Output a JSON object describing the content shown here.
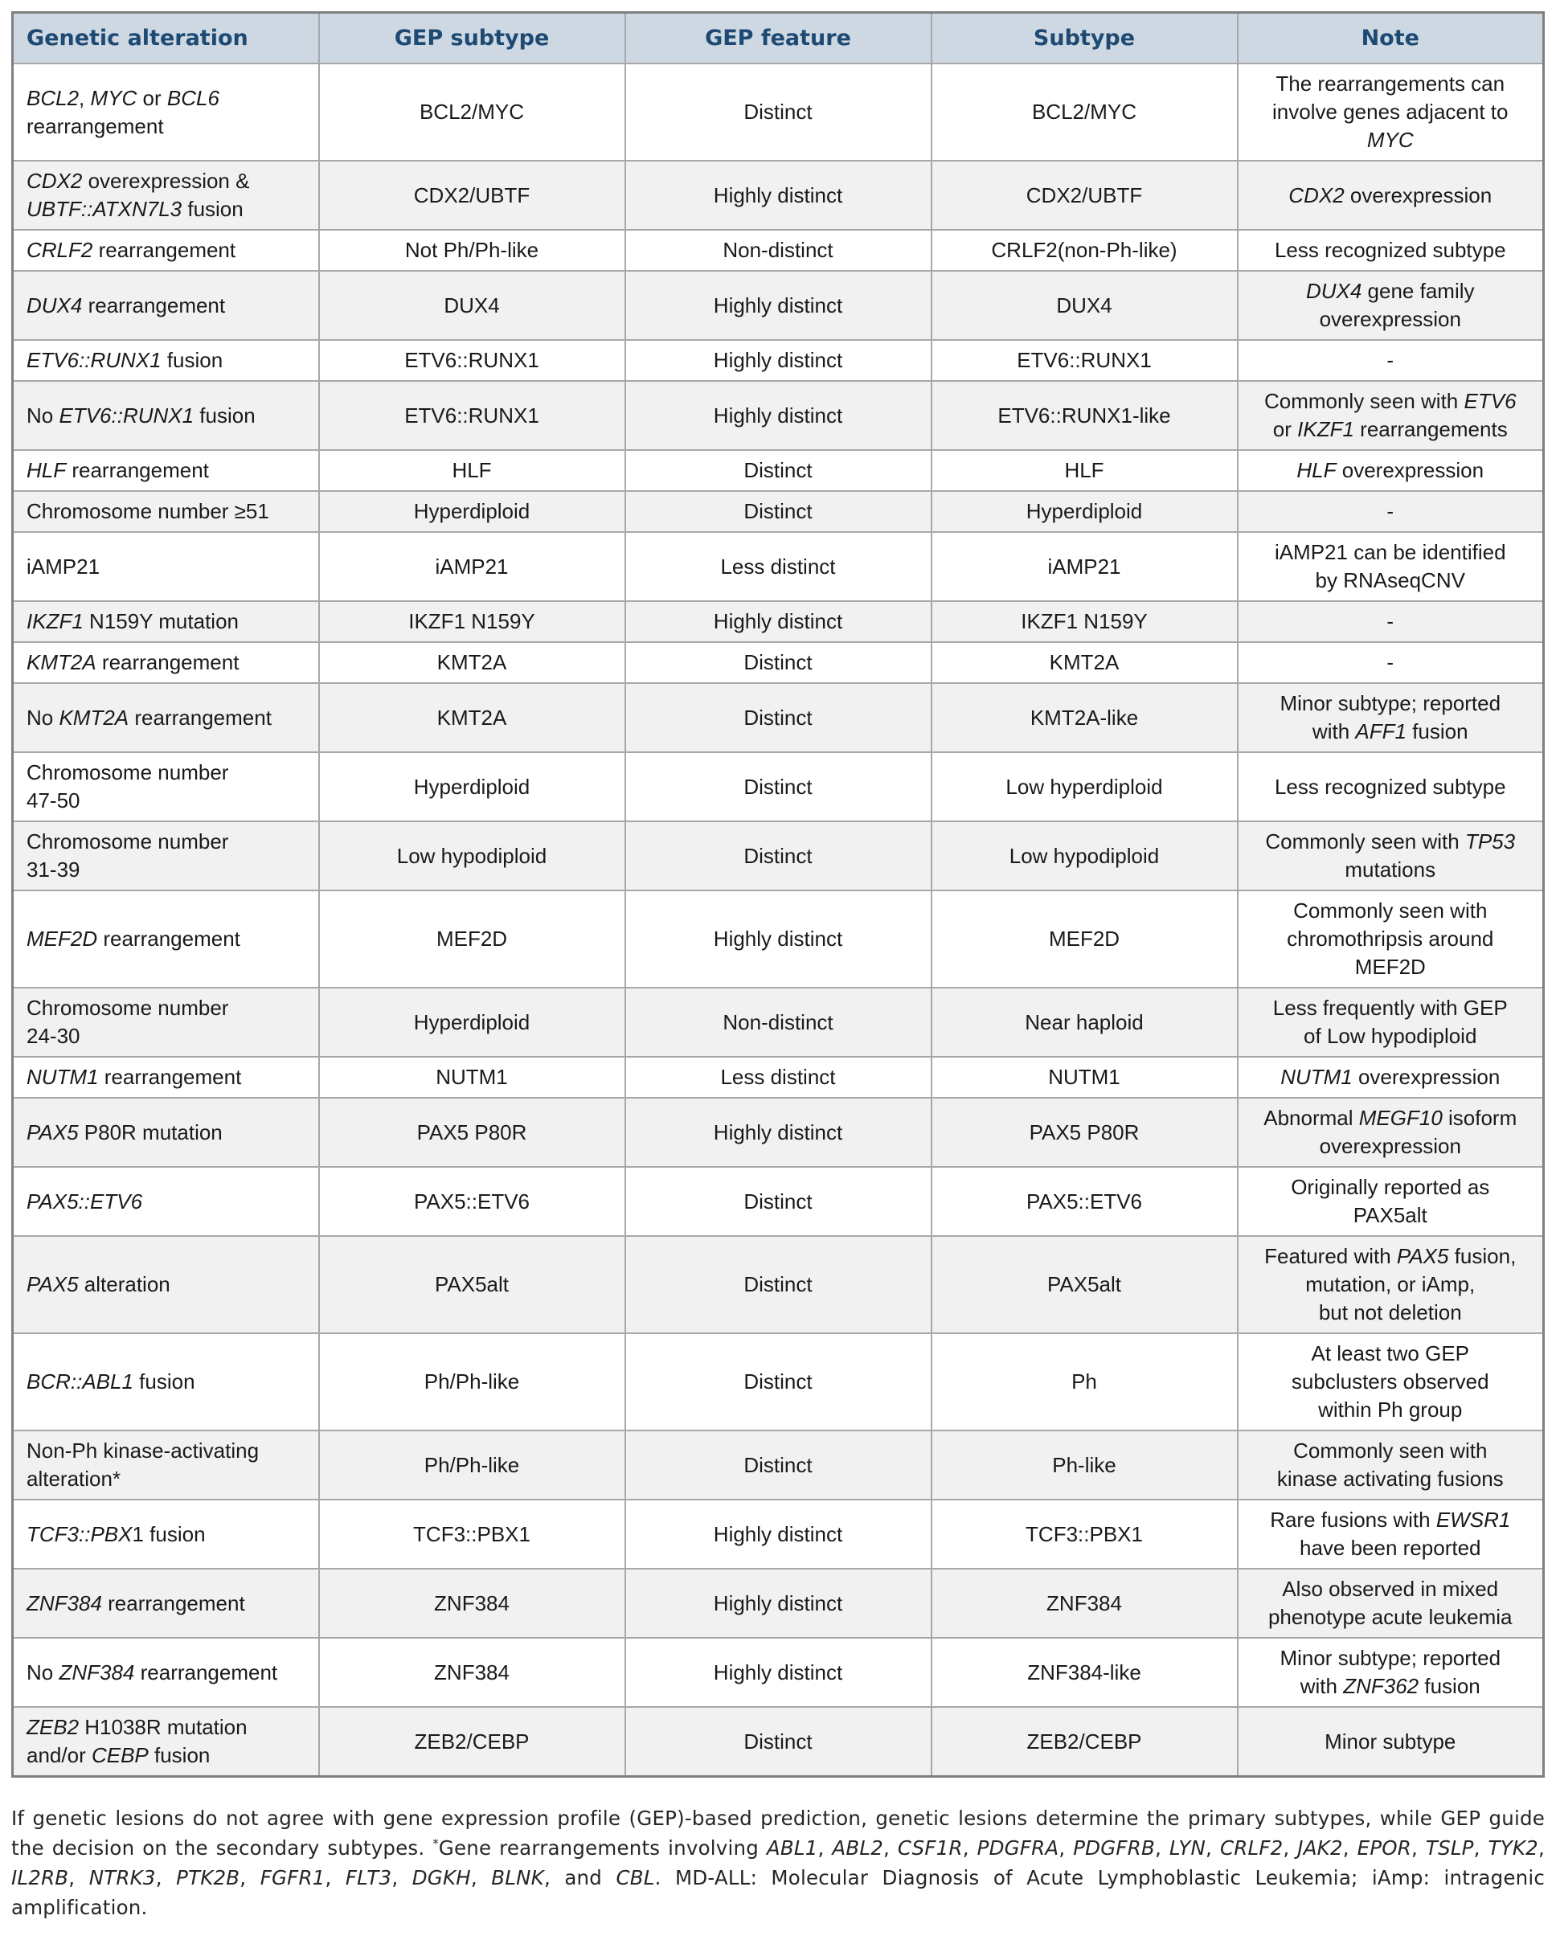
{
  "colors": {
    "header_bg": "#cdd8e2",
    "header_text": "#1d4973",
    "row_alt_bg": "#f1f1f1",
    "border": "#a8a8a8",
    "outer_border": "#7f7f7f"
  },
  "table": {
    "headers": [
      "Genetic alteration",
      "GEP subtype",
      "GEP feature",
      "Subtype",
      "Note"
    ],
    "rows": [
      {
        "genetic_alteration": [
          {
            "t": "BCL2",
            "i": true
          },
          {
            "t": ", "
          },
          {
            "t": "MYC",
            "i": true
          },
          {
            "t": " or "
          },
          {
            "t": "BCL6",
            "i": true
          },
          {
            "t": "\nrearrangement"
          }
        ],
        "gep_subtype": "BCL2/MYC",
        "gep_feature": "Distinct",
        "subtype": "BCL2/MYC",
        "note": [
          {
            "t": "The rearrangements can\ninvolve genes adjacent to\n"
          },
          {
            "t": "MYC",
            "i": true
          }
        ]
      },
      {
        "genetic_alteration": [
          {
            "t": "CDX2",
            "i": true
          },
          {
            "t": " overexpression &\n"
          },
          {
            "t": "UBTF::ATXN7L3",
            "i": true
          },
          {
            "t": " fusion"
          }
        ],
        "gep_subtype": "CDX2/UBTF",
        "gep_feature": "Highly distinct",
        "subtype": "CDX2/UBTF",
        "note": [
          {
            "t": "CDX2",
            "i": true
          },
          {
            "t": " overexpression"
          }
        ]
      },
      {
        "genetic_alteration": [
          {
            "t": "CRLF2",
            "i": true
          },
          {
            "t": " rearrangement"
          }
        ],
        "gep_subtype": "Not Ph/Ph-like",
        "gep_feature": "Non-distinct",
        "subtype": "CRLF2(non-Ph-like)",
        "note": "Less recognized subtype"
      },
      {
        "genetic_alteration": [
          {
            "t": "DUX4",
            "i": true
          },
          {
            "t": " rearrangement"
          }
        ],
        "gep_subtype": "DUX4",
        "gep_feature": "Highly distinct",
        "subtype": "DUX4",
        "note": [
          {
            "t": "DUX4",
            "i": true
          },
          {
            "t": " gene family\noverexpression"
          }
        ]
      },
      {
        "genetic_alteration": [
          {
            "t": "ETV6::RUNX1",
            "i": true
          },
          {
            "t": " fusion"
          }
        ],
        "gep_subtype": "ETV6::RUNX1",
        "gep_feature": "Highly distinct",
        "subtype": "ETV6::RUNX1",
        "note": "-"
      },
      {
        "genetic_alteration": [
          {
            "t": "No "
          },
          {
            "t": "ETV6::RUNX1",
            "i": true
          },
          {
            "t": " fusion"
          }
        ],
        "gep_subtype": "ETV6::RUNX1",
        "gep_feature": "Highly distinct",
        "subtype": "ETV6::RUNX1-like",
        "note": [
          {
            "t": "Commonly seen with "
          },
          {
            "t": "ETV6",
            "i": true
          },
          {
            "t": "\nor "
          },
          {
            "t": "IKZF1",
            "i": true
          },
          {
            "t": " rearrangements"
          }
        ]
      },
      {
        "genetic_alteration": [
          {
            "t": "HLF",
            "i": true
          },
          {
            "t": " rearrangement"
          }
        ],
        "gep_subtype": "HLF",
        "gep_feature": "Distinct",
        "subtype": "HLF",
        "note": [
          {
            "t": "HLF",
            "i": true
          },
          {
            "t": " overexpression"
          }
        ]
      },
      {
        "genetic_alteration": "Chromosome number ≥51",
        "gep_subtype": "Hyperdiploid",
        "gep_feature": "Distinct",
        "subtype": "Hyperdiploid",
        "note": "-"
      },
      {
        "genetic_alteration": "iAMP21",
        "gep_subtype": "iAMP21",
        "gep_feature": "Less distinct",
        "subtype": "iAMP21",
        "note": "iAMP21 can be identified\nby RNAseqCNV"
      },
      {
        "genetic_alteration": [
          {
            "t": "IKZF1",
            "i": true
          },
          {
            "t": " N159Y mutation"
          }
        ],
        "gep_subtype": "IKZF1 N159Y",
        "gep_feature": "Highly distinct",
        "subtype": "IKZF1 N159Y",
        "note": "-"
      },
      {
        "genetic_alteration": [
          {
            "t": "KMT2A",
            "i": true
          },
          {
            "t": " rearrangement"
          }
        ],
        "gep_subtype": "KMT2A",
        "gep_feature": "Distinct",
        "subtype": "KMT2A",
        "note": "-"
      },
      {
        "genetic_alteration": [
          {
            "t": "No "
          },
          {
            "t": "KMT2A",
            "i": true
          },
          {
            "t": " rearrangement"
          }
        ],
        "gep_subtype": "KMT2A",
        "gep_feature": "Distinct",
        "subtype": "KMT2A-like",
        "note": [
          {
            "t": "Minor subtype; reported\nwith "
          },
          {
            "t": "AFF1",
            "i": true
          },
          {
            "t": " fusion"
          }
        ]
      },
      {
        "genetic_alteration": "Chromosome number\n47-50",
        "gep_subtype": "Hyperdiploid",
        "gep_feature": "Distinct",
        "subtype": "Low hyperdiploid",
        "note": "Less recognized subtype"
      },
      {
        "genetic_alteration": "Chromosome number\n31-39",
        "gep_subtype": "Low hypodiploid",
        "gep_feature": "Distinct",
        "subtype": "Low hypodiploid",
        "note": [
          {
            "t": "Commonly seen with "
          },
          {
            "t": "TP53",
            "i": true
          },
          {
            "t": "\nmutations"
          }
        ]
      },
      {
        "genetic_alteration": [
          {
            "t": "MEF2D",
            "i": true
          },
          {
            "t": " rearrangement"
          }
        ],
        "gep_subtype": "MEF2D",
        "gep_feature": "Highly distinct",
        "subtype": "MEF2D",
        "note": "Commonly seen with\nchromothripsis around\nMEF2D"
      },
      {
        "genetic_alteration": "Chromosome number\n24-30",
        "gep_subtype": "Hyperdiploid",
        "gep_feature": "Non-distinct",
        "subtype": "Near haploid",
        "note": "Less frequently with GEP\nof Low hypodiploid"
      },
      {
        "genetic_alteration": [
          {
            "t": "NUTM1",
            "i": true
          },
          {
            "t": " rearrangement"
          }
        ],
        "gep_subtype": "NUTM1",
        "gep_feature": "Less distinct",
        "subtype": "NUTM1",
        "note": [
          {
            "t": "NUTM1",
            "i": true
          },
          {
            "t": " overexpression"
          }
        ]
      },
      {
        "genetic_alteration": [
          {
            "t": "PAX5",
            "i": true
          },
          {
            "t": " P80R mutation"
          }
        ],
        "gep_subtype": "PAX5 P80R",
        "gep_feature": "Highly distinct",
        "subtype": "PAX5 P80R",
        "note": [
          {
            "t": "Abnormal "
          },
          {
            "t": "MEGF10",
            "i": true
          },
          {
            "t": " isoform\noverexpression"
          }
        ]
      },
      {
        "genetic_alteration": [
          {
            "t": "PAX5::ETV6",
            "i": true
          }
        ],
        "gep_subtype": "PAX5::ETV6",
        "gep_feature": "Distinct",
        "subtype": "PAX5::ETV6",
        "note": "Originally reported as\nPAX5alt"
      },
      {
        "genetic_alteration": [
          {
            "t": "PAX5",
            "i": true
          },
          {
            "t": " alteration"
          }
        ],
        "gep_subtype": "PAX5alt",
        "gep_feature": "Distinct",
        "subtype": "PAX5alt",
        "note": [
          {
            "t": "Featured with "
          },
          {
            "t": "PAX5",
            "i": true
          },
          {
            "t": " fusion,\nmutation, or iAmp,\nbut not deletion"
          }
        ]
      },
      {
        "genetic_alteration": [
          {
            "t": "BCR::ABL1",
            "i": true
          },
          {
            "t": " fusion"
          }
        ],
        "gep_subtype": "Ph/Ph-like",
        "gep_feature": "Distinct",
        "subtype": "Ph",
        "note": "At least two GEP\nsubclusters observed\nwithin Ph group"
      },
      {
        "genetic_alteration": "Non-Ph kinase-activating\nalteration*",
        "gep_subtype": "Ph/Ph-like",
        "gep_feature": "Distinct",
        "subtype": "Ph-like",
        "note": "Commonly seen with\nkinase activating fusions"
      },
      {
        "genetic_alteration": [
          {
            "t": "TCF3::PBX",
            "i": true
          },
          {
            "t": "1 fusion"
          }
        ],
        "gep_subtype": "TCF3::PBX1",
        "gep_feature": "Highly distinct",
        "subtype": "TCF3::PBX1",
        "note": [
          {
            "t": "Rare fusions with "
          },
          {
            "t": "EWSR1",
            "i": true
          },
          {
            "t": "\nhave been reported"
          }
        ]
      },
      {
        "genetic_alteration": [
          {
            "t": "ZNF384",
            "i": true
          },
          {
            "t": " rearrangement"
          }
        ],
        "gep_subtype": "ZNF384",
        "gep_feature": "Highly distinct",
        "subtype": "ZNF384",
        "note": "Also observed in mixed\nphenotype acute leukemia"
      },
      {
        "genetic_alteration": [
          {
            "t": "No "
          },
          {
            "t": "ZNF384",
            "i": true
          },
          {
            "t": " rearrangement"
          }
        ],
        "gep_subtype": "ZNF384",
        "gep_feature": "Highly distinct",
        "subtype": "ZNF384-like",
        "note": [
          {
            "t": "Minor subtype; reported\nwith "
          },
          {
            "t": "ZNF362",
            "i": true
          },
          {
            "t": " fusion"
          }
        ]
      },
      {
        "genetic_alteration": [
          {
            "t": "ZEB2",
            "i": true
          },
          {
            "t": " H1038R mutation\nand/or "
          },
          {
            "t": "CEBP",
            "i": true
          },
          {
            "t": " fusion"
          }
        ],
        "gep_subtype": "ZEB2/CEBP",
        "gep_feature": "Distinct",
        "subtype": "ZEB2/CEBP",
        "note": "Minor subtype"
      }
    ]
  },
  "footnote": {
    "segments": [
      {
        "t": "If genetic lesions do not agree with gene expression profile (GEP)-based prediction, genetic lesions determine the primary subtypes, while GEP guide the decision on the secondary subtypes. "
      },
      {
        "t": "*",
        "sup": true
      },
      {
        "t": "Gene rearrangements involving "
      },
      {
        "t": "ABL1",
        "i": true
      },
      {
        "t": ", "
      },
      {
        "t": "ABL2",
        "i": true
      },
      {
        "t": ", "
      },
      {
        "t": "CSF1R",
        "i": true
      },
      {
        "t": ", "
      },
      {
        "t": "PDGFRA",
        "i": true
      },
      {
        "t": ", "
      },
      {
        "t": "PDGFRB",
        "i": true
      },
      {
        "t": ", "
      },
      {
        "t": "LYN",
        "i": true
      },
      {
        "t": ", "
      },
      {
        "t": "CRLF2",
        "i": true
      },
      {
        "t": ", "
      },
      {
        "t": "JAK2",
        "i": true
      },
      {
        "t": ", "
      },
      {
        "t": "EPOR",
        "i": true
      },
      {
        "t": ", "
      },
      {
        "t": "TSLP",
        "i": true
      },
      {
        "t": ", "
      },
      {
        "t": "TYK2",
        "i": true
      },
      {
        "t": ", "
      },
      {
        "t": "IL2RB",
        "i": true
      },
      {
        "t": ", "
      },
      {
        "t": "NTRK3",
        "i": true
      },
      {
        "t": ", "
      },
      {
        "t": "PTK2B",
        "i": true
      },
      {
        "t": ", "
      },
      {
        "t": "FGFR1",
        "i": true
      },
      {
        "t": ", "
      },
      {
        "t": "FLT3",
        "i": true
      },
      {
        "t": ", "
      },
      {
        "t": "DGKH",
        "i": true
      },
      {
        "t": ", "
      },
      {
        "t": "BLNK",
        "i": true
      },
      {
        "t": ", and "
      },
      {
        "t": "CBL",
        "i": true
      },
      {
        "t": ". MD-ALL: Molecular Diagnosis of Acute Lymphoblastic Leukemia; iAmp: intragenic amplification."
      }
    ]
  }
}
